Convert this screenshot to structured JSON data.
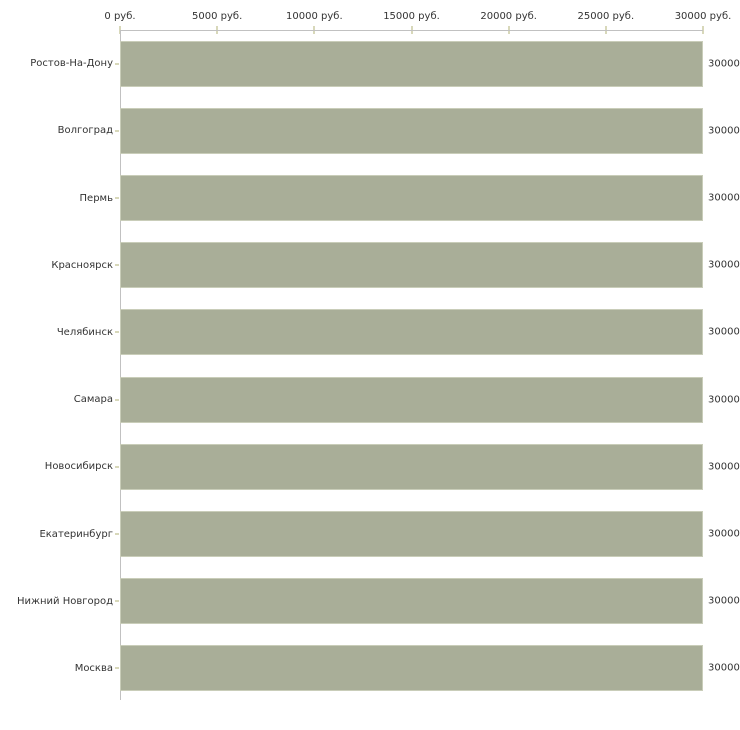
{
  "chart_data": {
    "type": "bar",
    "orientation": "horizontal",
    "title": "",
    "categories": [
      "Ростов-На-Дону",
      "Волгоград",
      "Пермь",
      "Красноярск",
      "Челябинск",
      "Самара",
      "Новосибирск",
      "Екатеринбург",
      "Нижний Новгород",
      "Москва"
    ],
    "values": [
      30000,
      30000,
      30000,
      30000,
      30000,
      30000,
      30000,
      30000,
      30000,
      30000
    ],
    "bar_value_labels": [
      "30000",
      "30000",
      "30000",
      "30000",
      "30000",
      "30000",
      "30000",
      "30000",
      "30000",
      "30000"
    ],
    "x_axis": {
      "min": 0,
      "max": 30000,
      "unit": "руб.",
      "tick_values": [
        0,
        5000,
        10000,
        15000,
        20000,
        25000,
        30000
      ],
      "tick_labels": [
        "0 руб.",
        "5000 руб.",
        "10000 руб.",
        "15000 руб.",
        "20000 руб.",
        "25000 руб.",
        "30000 руб."
      ]
    },
    "ylabel": "",
    "xlabel": "",
    "grid": false,
    "legend": false,
    "colors": {
      "bar_fill": "#a9ae98",
      "bar_border": "#c9cdb9",
      "axis_line": "#c1c1c1",
      "tick_mark": "#d8d8ba",
      "text": "#333333",
      "background": "#ffffff"
    }
  }
}
